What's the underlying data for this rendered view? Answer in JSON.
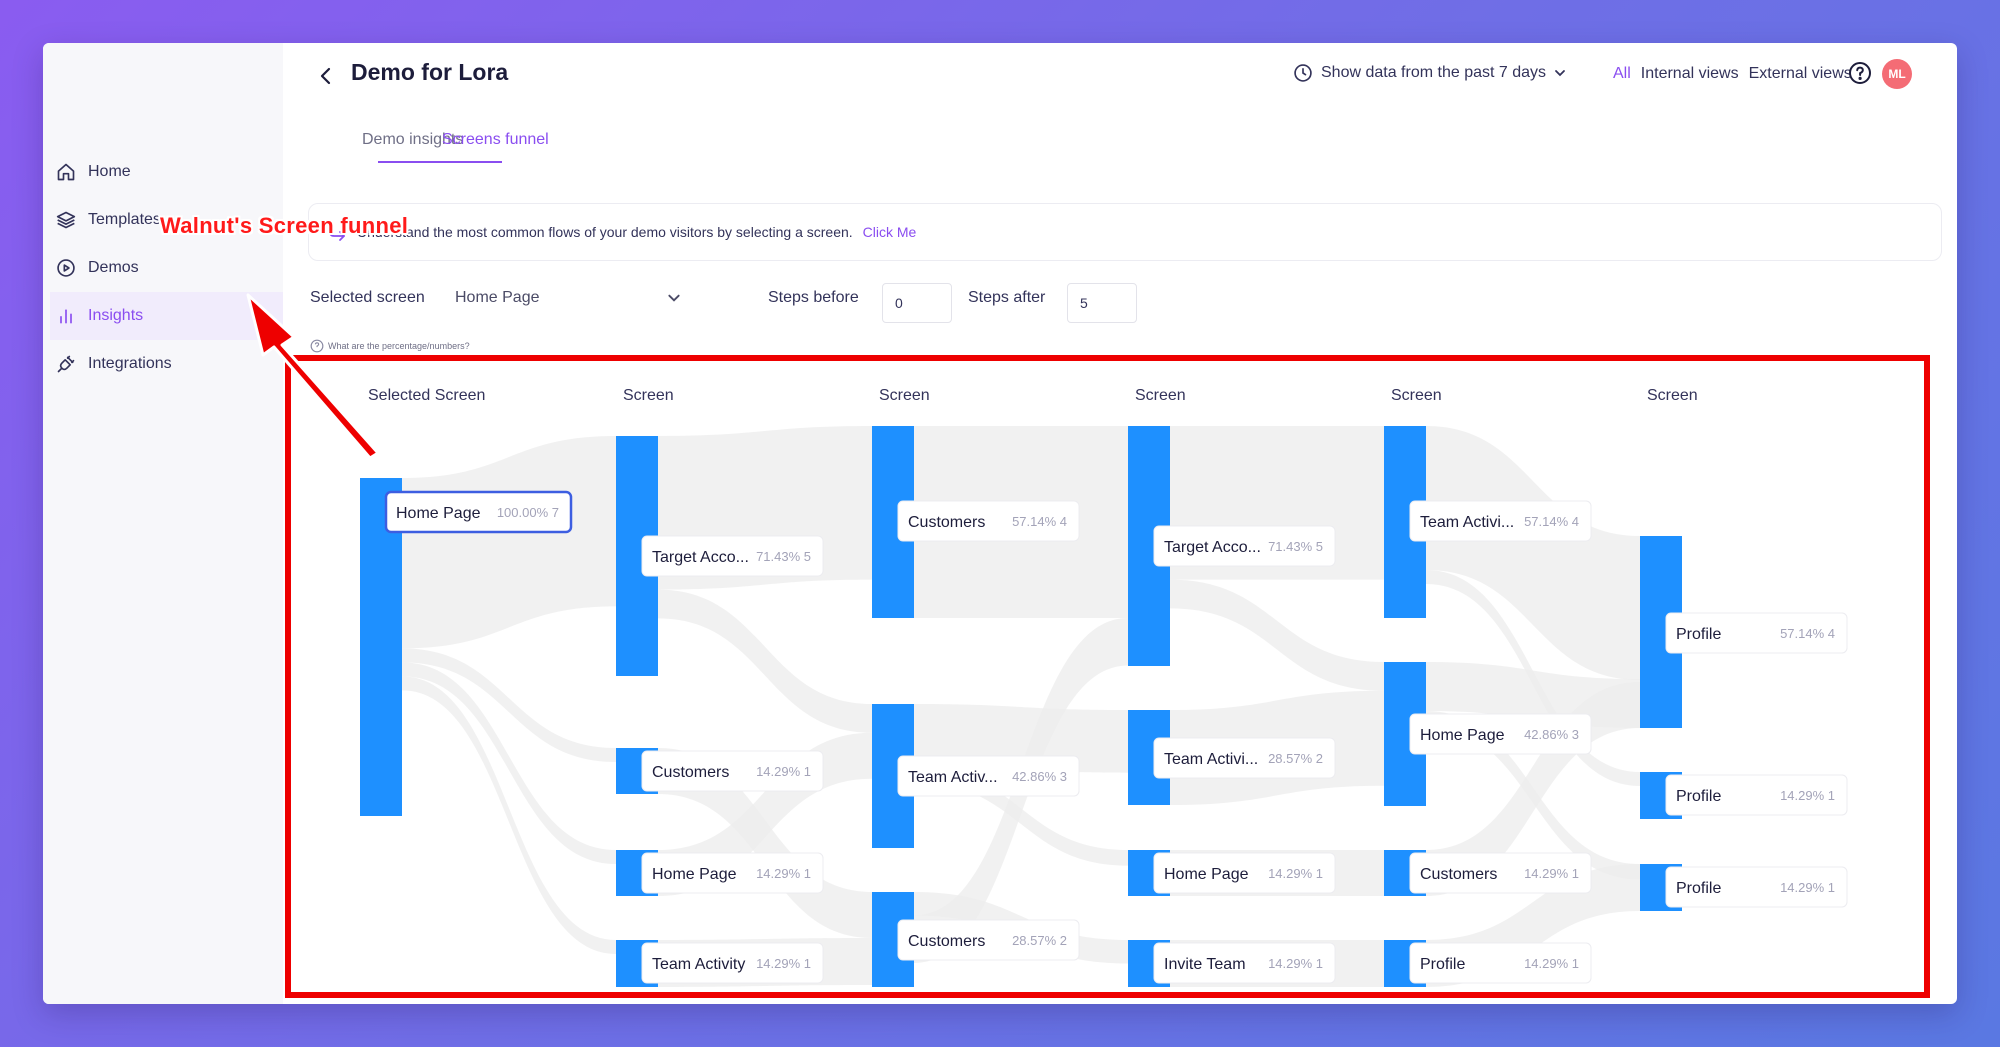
{
  "sidebar": {
    "items": [
      {
        "label": "Home",
        "icon": "home-icon",
        "active": false
      },
      {
        "label": "Templates",
        "icon": "layers-icon",
        "active": false
      },
      {
        "label": "Demos",
        "icon": "play-circle-icon",
        "active": false
      },
      {
        "label": "Insights",
        "icon": "bar-chart-icon",
        "active": true
      },
      {
        "label": "Integrations",
        "icon": "plug-icon",
        "active": false
      }
    ]
  },
  "header": {
    "title": "Demo for Lora",
    "date_range": "Show data from the past 7 days",
    "views": {
      "all": "All",
      "internal": "Internal views",
      "external": "External views"
    },
    "avatar_initials": "ML"
  },
  "tabs": [
    {
      "label": "Demo insights",
      "active": false
    },
    {
      "label": "Screens funnel",
      "active": true
    }
  ],
  "info": {
    "text": "Understand the most common flows of your demo visitors by selecting a screen.",
    "link": "Click Me"
  },
  "controls": {
    "selected_screen_label": "Selected screen",
    "selected_screen_value": "Home Page",
    "steps_before_label": "Steps before",
    "steps_before_value": "0",
    "steps_after_label": "Steps after",
    "steps_after_value": "5",
    "help_link": "What are the percentage/numbers?"
  },
  "funnel": {
    "column_headers": [
      "Selected Screen",
      "Screen",
      "Screen",
      "Screen",
      "Screen",
      "Screen"
    ],
    "colors": {
      "bar": "#1e90ff",
      "flow": "#ececec",
      "label_border": "#3d5ee1"
    },
    "columns": [
      [
        {
          "label": "Home Page",
          "pct": "100.00%",
          "count": "7",
          "selected": true
        }
      ],
      [
        {
          "label": "Target Acco...",
          "pct": "71.43%",
          "count": "5"
        },
        {
          "label": "Customers",
          "pct": "14.29%",
          "count": "1"
        },
        {
          "label": "Home Page",
          "pct": "14.29%",
          "count": "1"
        },
        {
          "label": "Team Activity",
          "pct": "14.29%",
          "count": "1"
        }
      ],
      [
        {
          "label": "Customers",
          "pct": "57.14%",
          "count": "4"
        },
        {
          "label": "Team Activ...",
          "pct": "42.86%",
          "count": "3"
        },
        {
          "label": "Customers",
          "pct": "28.57%",
          "count": "2"
        }
      ],
      [
        {
          "label": "Target Acco...",
          "pct": "71.43%",
          "count": "5"
        },
        {
          "label": "Team Activi...",
          "pct": "28.57%",
          "count": "2"
        },
        {
          "label": "Home Page",
          "pct": "14.29%",
          "count": "1"
        },
        {
          "label": "Invite Team",
          "pct": "14.29%",
          "count": "1"
        }
      ],
      [
        {
          "label": "Team Activi...",
          "pct": "57.14%",
          "count": "4"
        },
        {
          "label": "Home Page",
          "pct": "42.86%",
          "count": "3"
        },
        {
          "label": "Customers",
          "pct": "14.29%",
          "count": "1"
        },
        {
          "label": "Profile",
          "pct": "14.29%",
          "count": "1"
        }
      ],
      [
        {
          "label": "Profile",
          "pct": "57.14%",
          "count": "4"
        },
        {
          "label": "Profile",
          "pct": "14.29%",
          "count": "1"
        },
        {
          "label": "Profile",
          "pct": "14.29%",
          "count": "1"
        }
      ]
    ]
  },
  "annotation": {
    "text": "Walnut's Screen funnel",
    "color": "#ee0000"
  }
}
